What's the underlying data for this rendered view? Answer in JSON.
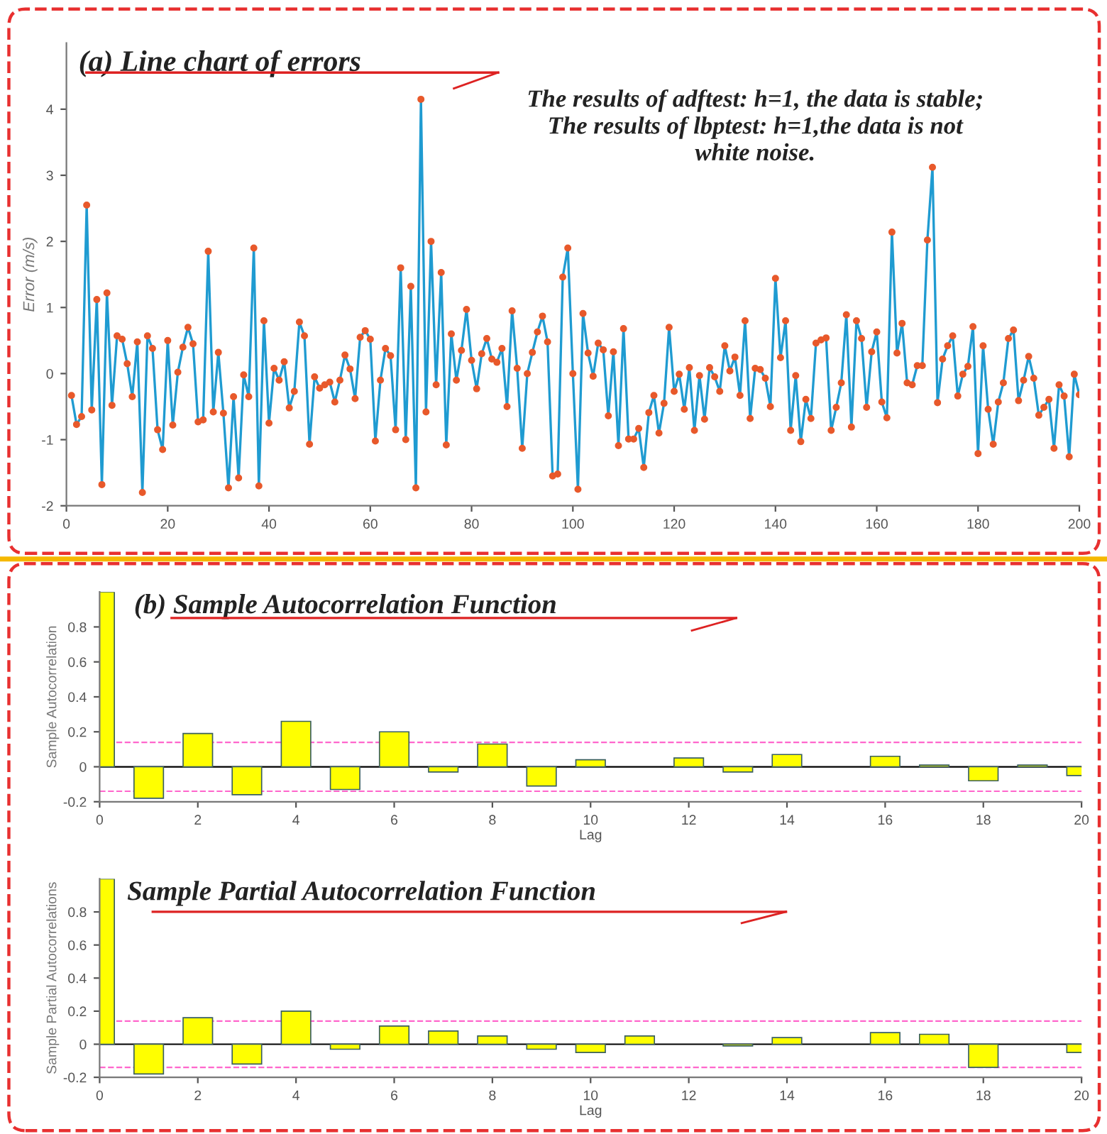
{
  "chart_data": [
    {
      "type": "line",
      "title": "(a) Line chart of errors",
      "ylabel": "Error (m/s)",
      "annotations": [
        "The results of adftest: h=1, the data is stable;\nThe results of lbptest: h=1,the data is not\nwhite noise."
      ],
      "xlim": [
        0,
        200
      ],
      "xticks": [
        0,
        20,
        40,
        60,
        80,
        100,
        120,
        140,
        160,
        180,
        200
      ],
      "ylim": [
        -2,
        5
      ],
      "yticks": [
        -2,
        -1,
        0,
        1,
        2,
        3,
        4
      ],
      "grid": false,
      "legend": false,
      "marker": "circle",
      "line_style": "solid",
      "series": [
        {
          "color": "#1f9bd1",
          "x": [
            1,
            2,
            3,
            4,
            5,
            6,
            7,
            8,
            9,
            10,
            11,
            12,
            13,
            14,
            15,
            16,
            17,
            18,
            19,
            20,
            21,
            22,
            23,
            24,
            25,
            26,
            27,
            28,
            29,
            30,
            31,
            32,
            33,
            34,
            35,
            36,
            37,
            38,
            39,
            40,
            41,
            42,
            43,
            44,
            45,
            46,
            47,
            48,
            49,
            50,
            51,
            52,
            53,
            54,
            55,
            56,
            57,
            58,
            59,
            60,
            61,
            62,
            63,
            64,
            65,
            66,
            67,
            68,
            69,
            70,
            71,
            72,
            73,
            74,
            75,
            76,
            77,
            78,
            79,
            80,
            81,
            82,
            83,
            84,
            85,
            86,
            87,
            88,
            89,
            90,
            91,
            92,
            93,
            94,
            95,
            96,
            97,
            98,
            99,
            100,
            101,
            102,
            103,
            104,
            105,
            106,
            107,
            108,
            109,
            110,
            111,
            112,
            113,
            114,
            115,
            116,
            117,
            118,
            119,
            120,
            121,
            122,
            123,
            124,
            125,
            126,
            127,
            128,
            129,
            130,
            131,
            132,
            133,
            134,
            135,
            136,
            137,
            138,
            139,
            140,
            141,
            142,
            143,
            144,
            145,
            146,
            147,
            148,
            149,
            150,
            151,
            152,
            153,
            154,
            155,
            156,
            157,
            158,
            159,
            160,
            161,
            162,
            163,
            164,
            165,
            166,
            167,
            168,
            169,
            170,
            171,
            172,
            173,
            174,
            175,
            176,
            177,
            178,
            179,
            180,
            181,
            182,
            183,
            184,
            185,
            186,
            187,
            188,
            189,
            190,
            191,
            192,
            193,
            194,
            195,
            196,
            197,
            198,
            199,
            200
          ],
          "values": [
            -0.33,
            -0.77,
            -0.65,
            2.55,
            -0.55,
            1.12,
            -1.68,
            1.22,
            -0.48,
            0.57,
            0.52,
            0.15,
            -0.35,
            0.48,
            -1.8,
            0.57,
            0.38,
            -0.85,
            -1.15,
            0.5,
            -0.78,
            0.02,
            0.4,
            0.7,
            0.45,
            -0.73,
            -0.7,
            1.85,
            -0.58,
            0.32,
            -0.6,
            -1.73,
            -0.35,
            -1.58,
            -0.02,
            -0.35,
            1.9,
            -1.7,
            0.8,
            -0.75,
            0.08,
            -0.1,
            0.18,
            -0.52,
            -0.27,
            0.78,
            0.57,
            -1.07,
            -0.05,
            -0.22,
            -0.17,
            -0.13,
            -0.43,
            -0.1,
            0.28,
            0.07,
            -0.38,
            0.55,
            0.65,
            0.52,
            -1.02,
            -0.1,
            0.38,
            0.27,
            -0.85,
            1.6,
            -1.0,
            1.32,
            -1.73,
            4.15,
            -0.58,
            2.0,
            -0.17,
            1.53,
            -1.08,
            0.6,
            -0.1,
            0.35,
            0.97,
            0.2,
            -0.23,
            0.3,
            0.53,
            0.22,
            0.17,
            0.38,
            -0.5,
            0.95,
            0.08,
            -1.13,
            0.0,
            0.32,
            0.63,
            0.87,
            0.48,
            -1.55,
            -1.52,
            1.46,
            1.9,
            0.0,
            -1.75,
            0.91,
            0.31,
            -0.04,
            0.46,
            0.36,
            -0.64,
            0.33,
            -1.09,
            0.68,
            -0.99,
            -0.99,
            -0.83,
            -1.42,
            -0.59,
            -0.33,
            -0.9,
            -0.45,
            0.7,
            -0.27,
            -0.01,
            -0.54,
            0.09,
            -0.86,
            -0.03,
            -0.69,
            0.09,
            -0.05,
            -0.27,
            0.42,
            0.04,
            0.25,
            -0.33,
            0.8,
            -0.68,
            0.08,
            0.06,
            -0.07,
            -0.5,
            1.44,
            0.24,
            0.8,
            -0.86,
            -0.03,
            -1.03,
            -0.39,
            -0.68,
            0.46,
            0.51,
            0.54,
            -0.86,
            -0.51,
            -0.14,
            0.89,
            -0.81,
            0.8,
            0.53,
            -0.51,
            0.33,
            0.63,
            -0.43,
            -0.67,
            2.14,
            0.31,
            0.76,
            -0.14,
            -0.17,
            0.12,
            0.12,
            2.02,
            3.12,
            -0.44,
            0.22,
            0.42,
            0.57,
            -0.34,
            -0.01,
            0.11,
            0.71,
            -1.21,
            0.42,
            -0.54,
            -1.07,
            -0.43,
            -0.14,
            0.53,
            0.66,
            -0.41,
            -0.1,
            0.26,
            -0.07,
            -0.63,
            -0.51,
            -0.39,
            -1.13,
            -0.17,
            -0.34,
            -1.26,
            -0.01,
            -0.32
          ]
        }
      ]
    },
    {
      "type": "bar",
      "title": "(b) Sample Autocorrelation Function",
      "xlabel": "Lag",
      "ylabel": "Sample Autocorrelation",
      "x": [
        0,
        1,
        2,
        3,
        4,
        5,
        6,
        7,
        8,
        9,
        10,
        11,
        12,
        13,
        14,
        15,
        16,
        17,
        18,
        19,
        20
      ],
      "xlim": [
        0,
        20
      ],
      "xticks": [
        0,
        2,
        4,
        6,
        8,
        10,
        12,
        14,
        16,
        18,
        20
      ],
      "ylim": [
        -0.2,
        1.0
      ],
      "yticks": [
        -0.2,
        0,
        0.2,
        0.4,
        0.6,
        0.8
      ],
      "grid": false,
      "legend": false,
      "series": [
        {
          "color": "#ffff00",
          "values": [
            1.0,
            -0.18,
            0.19,
            -0.16,
            0.26,
            -0.13,
            0.2,
            -0.03,
            0.13,
            -0.11,
            0.04,
            0.0,
            0.05,
            -0.03,
            0.07,
            0.0,
            0.06,
            0.01,
            -0.08,
            0.01,
            -0.05
          ]
        }
      ],
      "ref_lines": [
        {
          "axis": "y",
          "value": 0,
          "color": "#000000",
          "line_style": "solid"
        },
        {
          "axis": "y",
          "value": 0.14,
          "color": "#ff66cc",
          "line_style": "dashed"
        },
        {
          "axis": "y",
          "value": -0.14,
          "color": "#ff66cc",
          "line_style": "dashed"
        }
      ]
    },
    {
      "type": "bar",
      "title": "Sample Partial Autocorrelation Function",
      "xlabel": "Lag",
      "ylabel": "Sample Partial Autocorrelations",
      "x": [
        0,
        1,
        2,
        3,
        4,
        5,
        6,
        7,
        8,
        9,
        10,
        11,
        12,
        13,
        14,
        15,
        16,
        17,
        18,
        19,
        20
      ],
      "xlim": [
        0,
        20
      ],
      "xticks": [
        0,
        2,
        4,
        6,
        8,
        10,
        12,
        14,
        16,
        18,
        20
      ],
      "ylim": [
        -0.2,
        1.0
      ],
      "yticks": [
        -0.2,
        0,
        0.2,
        0.4,
        0.6,
        0.8
      ],
      "grid": false,
      "legend": false,
      "series": [
        {
          "color": "#ffff00",
          "values": [
            1.0,
            -0.18,
            0.16,
            -0.12,
            0.2,
            -0.03,
            0.11,
            0.08,
            0.05,
            -0.03,
            -0.05,
            0.05,
            0.0,
            -0.01,
            0.04,
            0.0,
            0.07,
            0.06,
            -0.14,
            0.0,
            -0.05
          ]
        }
      ],
      "ref_lines": [
        {
          "axis": "y",
          "value": 0,
          "color": "#000000",
          "line_style": "solid"
        },
        {
          "axis": "y",
          "value": 0.14,
          "color": "#ff66cc",
          "line_style": "dashed"
        },
        {
          "axis": "y",
          "value": -0.14,
          "color": "#ff66cc",
          "line_style": "dashed"
        }
      ]
    }
  ]
}
